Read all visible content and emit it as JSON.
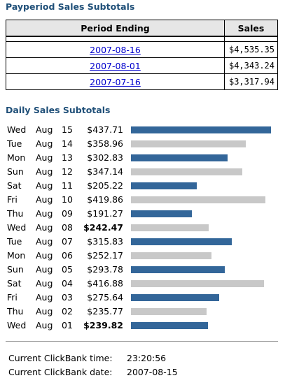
{
  "payperiod": {
    "title": "Payperiod Sales Subtotals",
    "headers": {
      "period": "Period Ending",
      "sales": "Sales"
    },
    "rows": [
      {
        "date": "2007-08-16",
        "sales": "$4,535.35"
      },
      {
        "date": "2007-08-01",
        "sales": "$4,343.24"
      },
      {
        "date": "2007-07-16",
        "sales": "$3,317.94"
      }
    ]
  },
  "daily": {
    "title": "Daily Sales Subtotals",
    "colors": {
      "blue": "#336699",
      "gray": "#c8c8c8"
    },
    "rows": [
      {
        "dow": "Wed",
        "month": "Aug",
        "day": "15",
        "amount": "$437.71",
        "value": 437.71,
        "bold": false,
        "color": "blue"
      },
      {
        "dow": "Tue",
        "month": "Aug",
        "day": "14",
        "amount": "$358.96",
        "value": 358.96,
        "bold": false,
        "color": "gray"
      },
      {
        "dow": "Mon",
        "month": "Aug",
        "day": "13",
        "amount": "$302.83",
        "value": 302.83,
        "bold": false,
        "color": "blue"
      },
      {
        "dow": "Sun",
        "month": "Aug",
        "day": "12",
        "amount": "$347.14",
        "value": 347.14,
        "bold": false,
        "color": "gray"
      },
      {
        "dow": "Sat",
        "month": "Aug",
        "day": "11",
        "amount": "$205.22",
        "value": 205.22,
        "bold": false,
        "color": "blue"
      },
      {
        "dow": "Fri",
        "month": "Aug",
        "day": "10",
        "amount": "$419.86",
        "value": 419.86,
        "bold": false,
        "color": "gray"
      },
      {
        "dow": "Thu",
        "month": "Aug",
        "day": "09",
        "amount": "$191.27",
        "value": 191.27,
        "bold": false,
        "color": "blue"
      },
      {
        "dow": "Wed",
        "month": "Aug",
        "day": "08",
        "amount": "$242.47",
        "value": 242.47,
        "bold": true,
        "color": "gray"
      },
      {
        "dow": "Tue",
        "month": "Aug",
        "day": "07",
        "amount": "$315.83",
        "value": 315.83,
        "bold": false,
        "color": "blue"
      },
      {
        "dow": "Mon",
        "month": "Aug",
        "day": "06",
        "amount": "$252.17",
        "value": 252.17,
        "bold": false,
        "color": "gray"
      },
      {
        "dow": "Sun",
        "month": "Aug",
        "day": "05",
        "amount": "$293.78",
        "value": 293.78,
        "bold": false,
        "color": "blue"
      },
      {
        "dow": "Sat",
        "month": "Aug",
        "day": "04",
        "amount": "$416.88",
        "value": 416.88,
        "bold": false,
        "color": "gray"
      },
      {
        "dow": "Fri",
        "month": "Aug",
        "day": "03",
        "amount": "$275.64",
        "value": 275.64,
        "bold": false,
        "color": "blue"
      },
      {
        "dow": "Thu",
        "month": "Aug",
        "day": "02",
        "amount": "$235.77",
        "value": 235.77,
        "bold": false,
        "color": "gray"
      },
      {
        "dow": "Wed",
        "month": "Aug",
        "day": "01",
        "amount": "$239.82",
        "value": 239.82,
        "bold": true,
        "color": "blue"
      }
    ]
  },
  "footer": {
    "time_label": "Current ClickBank time:",
    "time_value": "23:20:56",
    "date_label": "Current ClickBank date:",
    "date_value": "2007-08-15"
  }
}
